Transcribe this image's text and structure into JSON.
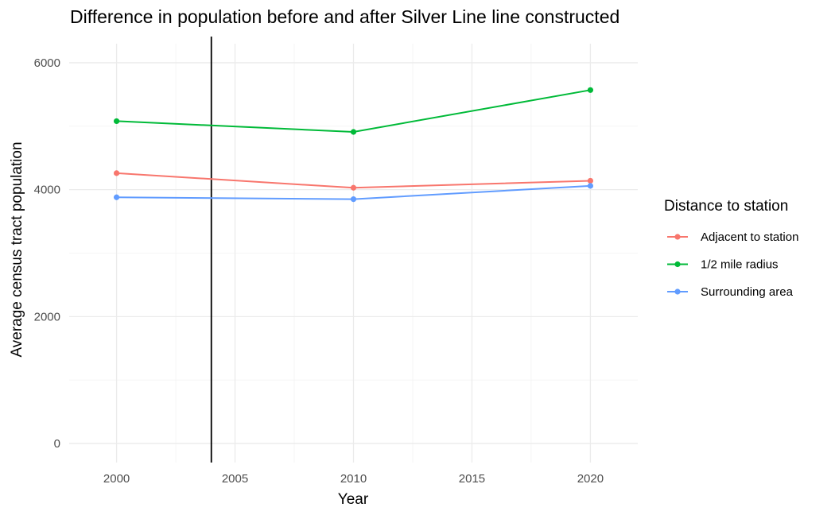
{
  "chart_data": {
    "type": "line",
    "title": "Difference in population before and after Silver Line line constructed",
    "xlabel": "Year",
    "ylabel": "Average census tract population",
    "x": [
      2000,
      2010,
      2020
    ],
    "xlim": [
      1998,
      2022
    ],
    "ylim": [
      -300,
      6300
    ],
    "x_ticks": [
      2000,
      2005,
      2010,
      2015,
      2020
    ],
    "y_ticks": [
      0,
      2000,
      4000,
      6000
    ],
    "grid": true,
    "vline": 2004,
    "legend": {
      "title": "Distance to station",
      "position": "right"
    },
    "series": [
      {
        "name": "Adjacent to station",
        "color": "#F8766D",
        "values": [
          4260,
          4030,
          4140
        ]
      },
      {
        "name": "1/2 mile radius",
        "color": "#00BA38",
        "values": [
          5080,
          4910,
          5570
        ]
      },
      {
        "name": "Surrounding area",
        "color": "#619CFF",
        "values": [
          3880,
          3850,
          4060
        ]
      }
    ]
  }
}
